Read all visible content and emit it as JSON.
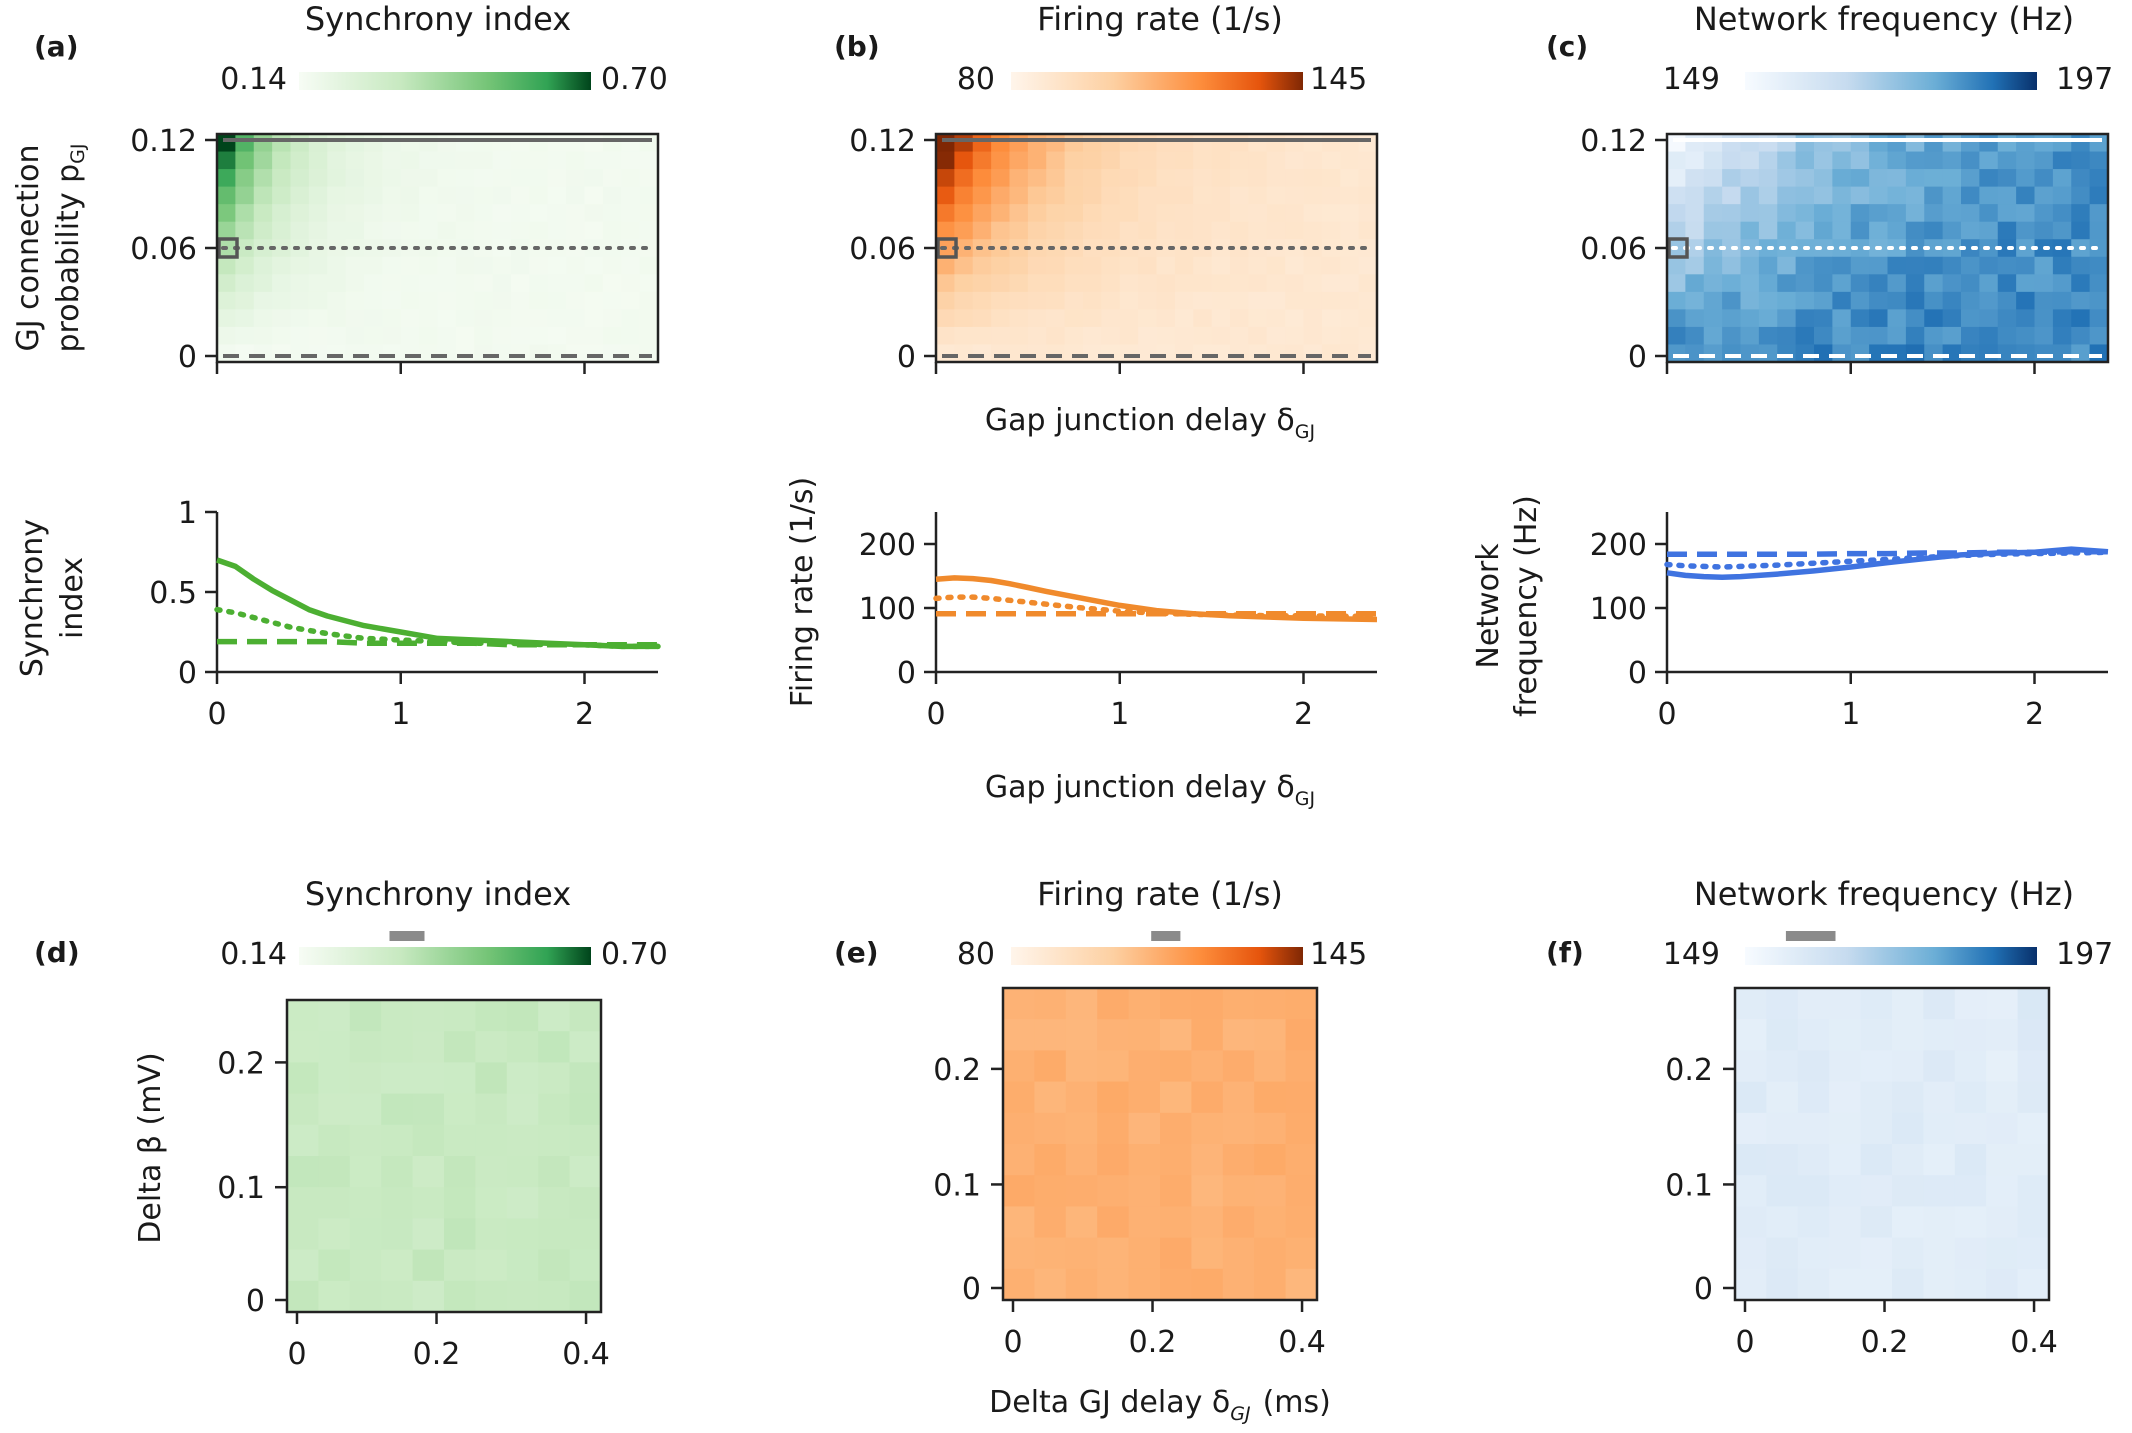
{
  "panels_top": [
    {
      "id": "a",
      "label": "(a)",
      "title": "Synchrony index",
      "cmap": "greens",
      "cbar_min": "0.14",
      "cbar_max": "0.70",
      "heatmap": {
        "x_range": [
          0,
          2.4
        ],
        "y_range": [
          0,
          0.12
        ],
        "y_ticks": [
          "0",
          "0.06",
          "0.12"
        ],
        "ylabel_line1": "GJ connection",
        "ylabel_line2": "probability p",
        "ylabel_sub": "GJ",
        "peak": 0.7,
        "background": 0.16,
        "marker": {
          "x": 0.05,
          "y": 0.06
        }
      },
      "line": {
        "ylim": [
          0,
          1
        ],
        "y_ticks": [
          "0",
          "0.5",
          "1"
        ],
        "x_ticks": [
          "0",
          "1",
          "2"
        ],
        "ylabel_line1": "Synchrony",
        "ylabel_line2": "index",
        "color": "#4caf32",
        "x": [
          0,
          0.1,
          0.2,
          0.3,
          0.4,
          0.5,
          0.6,
          0.8,
          1.0,
          1.2,
          1.4,
          1.6,
          1.8,
          2.0,
          2.2,
          2.4
        ],
        "series": [
          {
            "style": "solid",
            "values": [
              0.7,
              0.66,
              0.58,
              0.51,
              0.45,
              0.39,
              0.35,
              0.29,
              0.25,
              0.21,
              0.2,
              0.19,
              0.18,
              0.17,
              0.16,
              0.16
            ]
          },
          {
            "style": "dotted",
            "values": [
              0.39,
              0.37,
              0.34,
              0.31,
              0.28,
              0.26,
              0.24,
              0.21,
              0.2,
              0.19,
              0.18,
              0.18,
              0.17,
              0.17,
              0.16,
              0.16
            ]
          },
          {
            "style": "dashed",
            "values": [
              0.19,
              0.19,
              0.19,
              0.19,
              0.19,
              0.19,
              0.19,
              0.18,
              0.18,
              0.18,
              0.18,
              0.17,
              0.17,
              0.17,
              0.17,
              0.17
            ]
          }
        ]
      }
    },
    {
      "id": "b",
      "label": "(b)",
      "title": "Firing rate (1/s)",
      "cmap": "oranges",
      "cbar_min": "80",
      "cbar_max": "145",
      "heatmap": {
        "x_range": [
          0,
          2.4
        ],
        "y_range": [
          0,
          0.12
        ],
        "y_ticks": [
          "0",
          "0.06",
          "0.12"
        ],
        "xlabel": "Gap junction delay δ",
        "xlabel_sub": "GJ",
        "peak": 145,
        "background": 86,
        "marker": {
          "x": 0.05,
          "y": 0.06
        }
      },
      "line": {
        "ylim": [
          0,
          250
        ],
        "y_ticks": [
          "0",
          "100",
          "200"
        ],
        "x_ticks": [
          "0",
          "1",
          "2"
        ],
        "ylabel": "Firing rate (1/s)",
        "xlabel": "Gap junction delay δ",
        "xlabel_sub": "GJ",
        "color": "#f08a2c",
        "x": [
          0,
          0.1,
          0.2,
          0.3,
          0.4,
          0.5,
          0.6,
          0.8,
          1.0,
          1.2,
          1.4,
          1.6,
          1.8,
          2.0,
          2.2,
          2.4
        ],
        "series": [
          {
            "style": "solid",
            "values": [
              145,
              147,
              146,
              143,
              138,
              132,
              126,
              115,
              104,
              96,
              91,
              88,
              86,
              84,
              83,
              82
            ]
          },
          {
            "style": "dotted",
            "values": [
              115,
              117,
              117,
              115,
              112,
              109,
              106,
              100,
              95,
              92,
              90,
              89,
              88,
              88,
              87,
              87
            ]
          },
          {
            "style": "dashed",
            "values": [
              91,
              91,
              91,
              91,
              91,
              91,
              91,
              91,
              91,
              91,
              91,
              91,
              91,
              91,
              91,
              91
            ]
          }
        ]
      }
    },
    {
      "id": "c",
      "label": "(c)",
      "title": "Network frequency (Hz)",
      "cmap": "blues",
      "cbar_min": "149",
      "cbar_max": "197",
      "heatmap": {
        "x_range": [
          0,
          2.4
        ],
        "y_range": [
          0,
          0.12
        ],
        "y_ticks": [
          "0",
          "0.06",
          "0.12"
        ],
        "peak": 149,
        "background": 188,
        "marker": {
          "x": 0.05,
          "y": 0.06
        }
      },
      "line": {
        "ylim": [
          0,
          250
        ],
        "y_ticks": [
          "0",
          "100",
          "200"
        ],
        "x_ticks": [
          "0",
          "1",
          "2"
        ],
        "ylabel_line1": "Network",
        "ylabel_line2": "frequency (Hz)",
        "color": "#3f73e0",
        "x": [
          0,
          0.1,
          0.2,
          0.3,
          0.4,
          0.5,
          0.6,
          0.8,
          1.0,
          1.2,
          1.4,
          1.6,
          1.8,
          2.0,
          2.2,
          2.4
        ],
        "series": [
          {
            "style": "solid",
            "values": [
              155,
              151,
              149,
              148,
              149,
              151,
              153,
              158,
              164,
              171,
              177,
              183,
              186,
              187,
              192,
              188
            ]
          },
          {
            "style": "dotted",
            "values": [
              168,
              166,
              165,
              164,
              165,
              166,
              167,
              170,
              173,
              176,
              179,
              182,
              184,
              185,
              186,
              187
            ]
          },
          {
            "style": "dashed",
            "values": [
              184,
              184,
              184,
              184,
              184,
              184,
              184,
              184,
              185,
              185,
              186,
              186,
              187,
              187,
              188,
              188
            ]
          }
        ]
      }
    }
  ],
  "panels_bottom": [
    {
      "id": "d",
      "label": "(d)",
      "title": "Synchrony index",
      "cmap": "greens",
      "cbar_min": "0.14",
      "cbar_max": "0.70",
      "vmin": 0.14,
      "vmax": 0.7,
      "mean": 0.33,
      "jitter": 0.02,
      "marker_frac": [
        0.31,
        0.43
      ],
      "x_range": [
        0,
        0.42
      ],
      "y_range": [
        0,
        0.25
      ],
      "x_ticks": [
        0,
        0.2,
        0.4
      ],
      "x_tick_labels": [
        "0",
        "0.2",
        "0.4"
      ],
      "y_ticks": [
        0,
        0.1,
        0.2
      ],
      "y_tick_labels": [
        "0",
        "0.1",
        "0.2"
      ],
      "ylabel": "Delta β (mV)"
    },
    {
      "id": "e",
      "label": "(e)",
      "title": "Firing rate (1/s)",
      "cmap": "oranges",
      "cbar_min": "80",
      "cbar_max": "145",
      "vmin": 80,
      "vmax": 145,
      "mean": 112,
      "jitter": 2.0,
      "marker_frac": [
        0.48,
        0.58
      ],
      "x_range": [
        0,
        0.42
      ],
      "y_range": [
        0,
        0.27
      ],
      "x_ticks": [
        0,
        0.2,
        0.4
      ],
      "x_tick_labels": [
        "0",
        "0.2",
        "0.4"
      ],
      "y_ticks": [
        0,
        0.1,
        0.2
      ],
      "y_tick_labels": [
        "0",
        "0.1",
        "0.2"
      ],
      "xlabel": "Delta GJ delay δ",
      "xlabel_sub": "GJ",
      "xlabel_unit": "(ms)"
    },
    {
      "id": "f",
      "label": "(f)",
      "title": "Network frequency (Hz)",
      "cmap": "blues",
      "cbar_min": "149",
      "cbar_max": "197",
      "vmin": 149,
      "vmax": 197,
      "mean": 157,
      "jitter": 1.6,
      "marker_frac": [
        0.14,
        0.31
      ],
      "x_range": [
        0,
        0.42
      ],
      "y_range": [
        0,
        0.27
      ],
      "x_ticks": [
        0,
        0.2,
        0.4
      ],
      "x_tick_labels": [
        "0",
        "0.2",
        "0.4"
      ],
      "y_ticks": [
        0,
        0.1,
        0.2
      ],
      "y_tick_labels": [
        "0",
        "0.1",
        "0.2"
      ]
    }
  ]
}
